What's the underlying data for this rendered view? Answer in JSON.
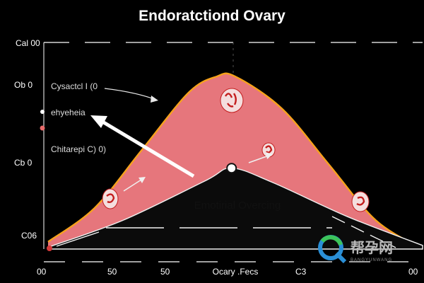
{
  "chart_data": {
    "type": "area",
    "title": "Endoratctiond Ovary",
    "xlabel": "Ocary .Fecs",
    "x_tick_labels": [
      "00",
      "50",
      "50",
      "C3",
      "00"
    ],
    "y_tick_labels": [
      "Cal 00",
      "Ob 0",
      "Cb 0",
      "C06"
    ],
    "series": [
      {
        "values": [
          {
            "x": 0,
            "y": 0.04
          },
          {
            "x": 0.125,
            "y": 0.23
          },
          {
            "x": 0.25,
            "y": 0.55
          },
          {
            "x": 0.375,
            "y": 0.87
          },
          {
            "x": 0.45,
            "y": 0.96
          },
          {
            "x": 0.5,
            "y": 0.96
          },
          {
            "x": 0.625,
            "y": 0.78
          },
          {
            "x": 0.75,
            "y": 0.47
          },
          {
            "x": 0.875,
            "y": 0.16
          },
          {
            "x": 1,
            "y": 0.0
          }
        ]
      }
    ],
    "inner_curve": [
      {
        "x": 0,
        "y": 0.01
      },
      {
        "x": 0.2,
        "y": 0.16
      },
      {
        "x": 0.42,
        "y": 0.38
      },
      {
        "x": 0.49,
        "y": 0.45
      },
      {
        "x": 0.6,
        "y": 0.37
      },
      {
        "x": 0.8,
        "y": 0.18
      },
      {
        "x": 1,
        "y": 0.02
      }
    ],
    "peak_marker": {
      "x": 0.49,
      "y": 0.45
    },
    "xlim": [
      0,
      1
    ],
    "ylim": [
      0,
      1
    ],
    "colors": {
      "fill": "#e6767c",
      "outline": "#f6a21c",
      "inner": "#0b0b0b",
      "follicle": "#c31d1d",
      "arrow": "#ffffff",
      "background": "#000000"
    },
    "annotations": [
      {
        "text": "Cysactcl I (0",
        "marker": "none"
      },
      {
        "text": "ehyeheia",
        "marker": "dot-white"
      },
      {
        "text": "Chitarepi C) 0)",
        "marker": "dot-red"
      }
    ],
    "center_label": "Emotirial Overcing",
    "grid": true
  },
  "watermark": {
    "logo_icon": "q-ring-logo",
    "text": "帮孕网",
    "subtext": "BANGYUNWANG"
  }
}
